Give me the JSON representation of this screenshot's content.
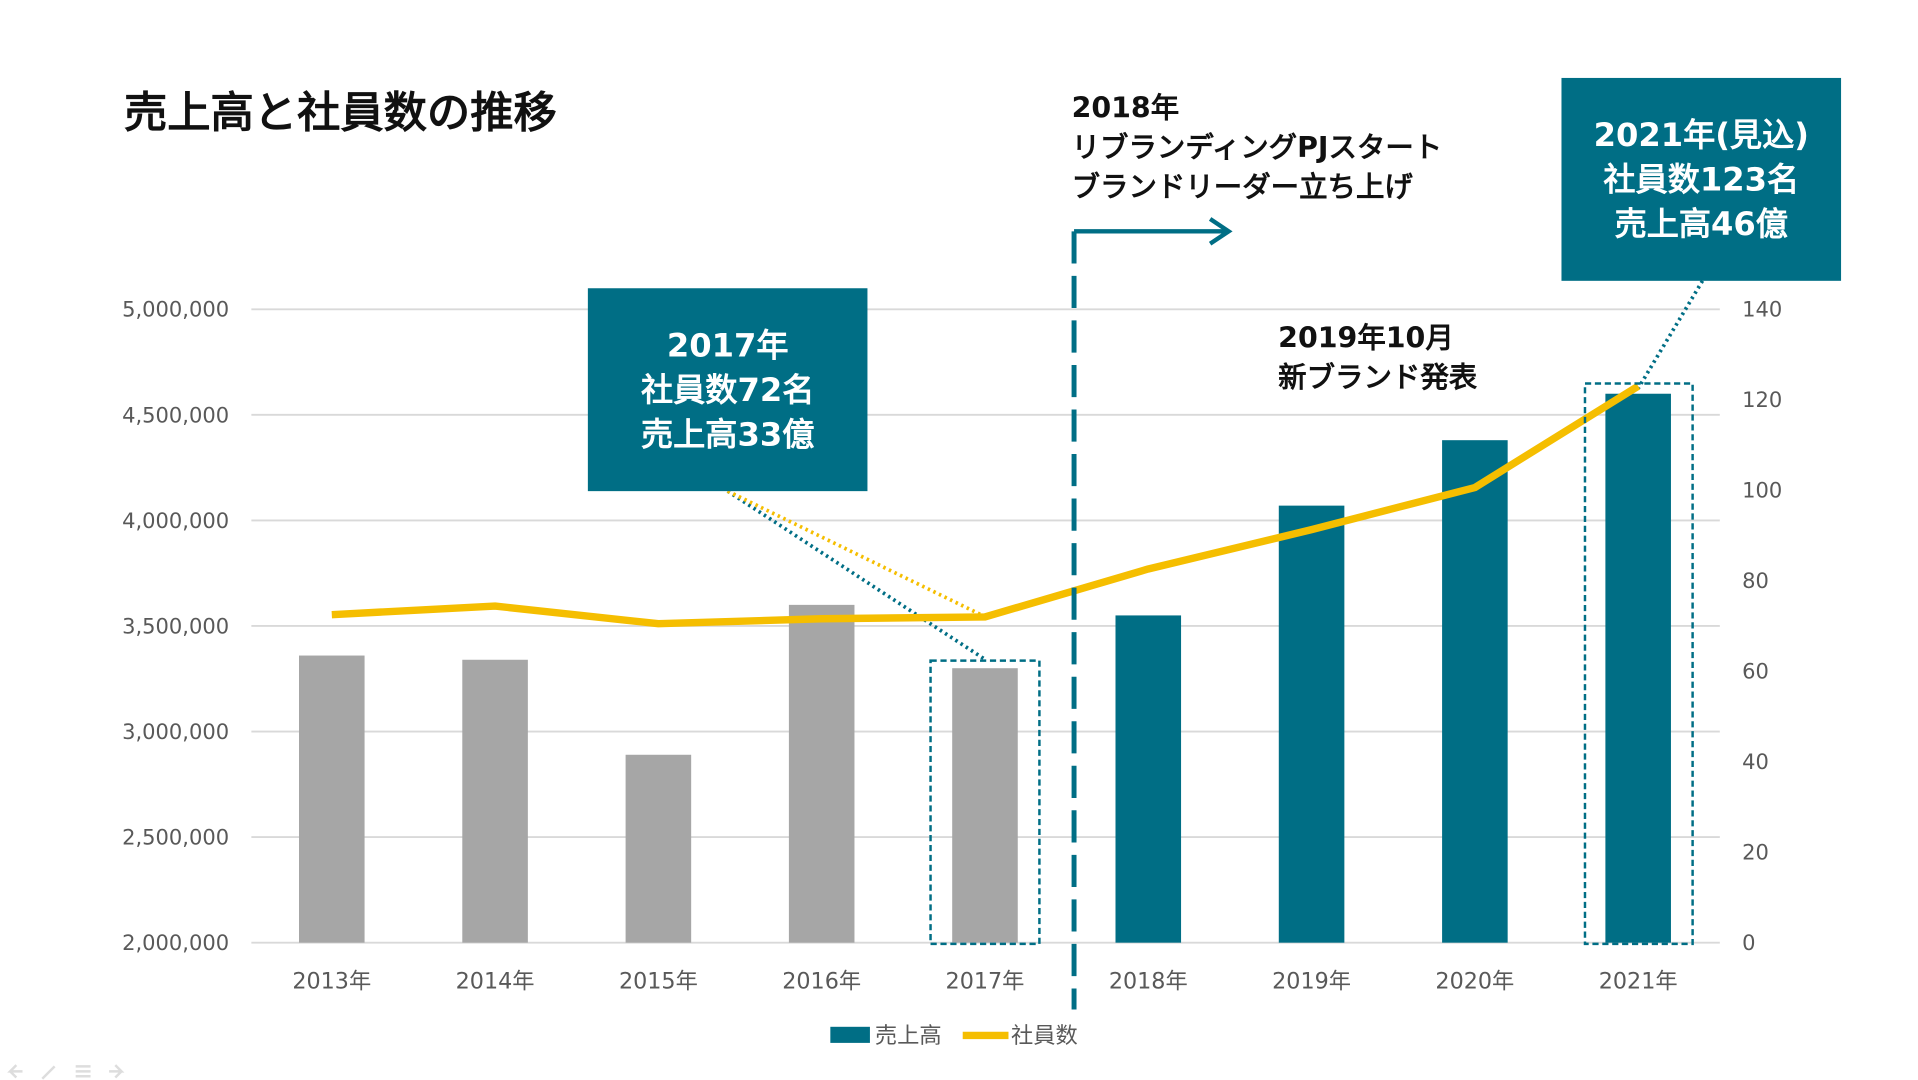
{
  "title": "売上高と社員数の推移",
  "colors": {
    "teal": "#006E85",
    "gray": "#A6A6A6",
    "yellow": "#F5BE00",
    "grid": "#D9D9D9"
  },
  "annotations": {
    "rebrand": [
      "2018年",
      "リブランディングPJスタート",
      "ブランドリーダー立ち上げ"
    ],
    "launch": [
      "2019年10月",
      "新ブランド発表"
    ],
    "box2017": [
      "2017年",
      "社員数72名",
      "売上高33億"
    ],
    "box2021": [
      "2021年(見込)",
      "社員数123名",
      "売上高46億"
    ]
  },
  "chart_data": {
    "type": "bar+line",
    "categories": [
      "2013年",
      "2014年",
      "2015年",
      "2016年",
      "2017年",
      "2018年",
      "2019年",
      "2020年",
      "2021年"
    ],
    "series": [
      {
        "name": "売上高",
        "type": "bar",
        "axis": "left",
        "values": [
          3360000,
          3340000,
          2890000,
          3600000,
          3300000,
          3550000,
          4070000,
          4380000,
          4600000
        ],
        "colors": [
          "#A6A6A6",
          "#A6A6A6",
          "#A6A6A6",
          "#A6A6A6",
          "#A6A6A6",
          "#006E85",
          "#006E85",
          "#006E85",
          "#006E85"
        ]
      },
      {
        "name": "社員数",
        "type": "line",
        "axis": "right",
        "values": [
          72.5,
          74.4,
          70.5,
          71.6,
          72,
          82.6,
          91.3,
          100.6,
          123
        ]
      }
    ],
    "left_axis": {
      "min": 2000000,
      "max": 5000000,
      "ticks": [
        "2,000,000",
        "2,500,000",
        "3,000,000",
        "3,500,000",
        "4,000,000",
        "4,500,000",
        "5,000,000"
      ]
    },
    "right_axis": {
      "min": 0,
      "max": 140,
      "ticks": [
        "0",
        "20",
        "40",
        "60",
        "80",
        "100",
        "120",
        "140"
      ]
    },
    "grid": true,
    "legend": "bottom"
  },
  "legend": {
    "sales": "売上高",
    "employees": "社員数"
  },
  "slideshow_controls": [
    "previous-icon",
    "pen-icon",
    "menu-icon",
    "next-icon"
  ]
}
